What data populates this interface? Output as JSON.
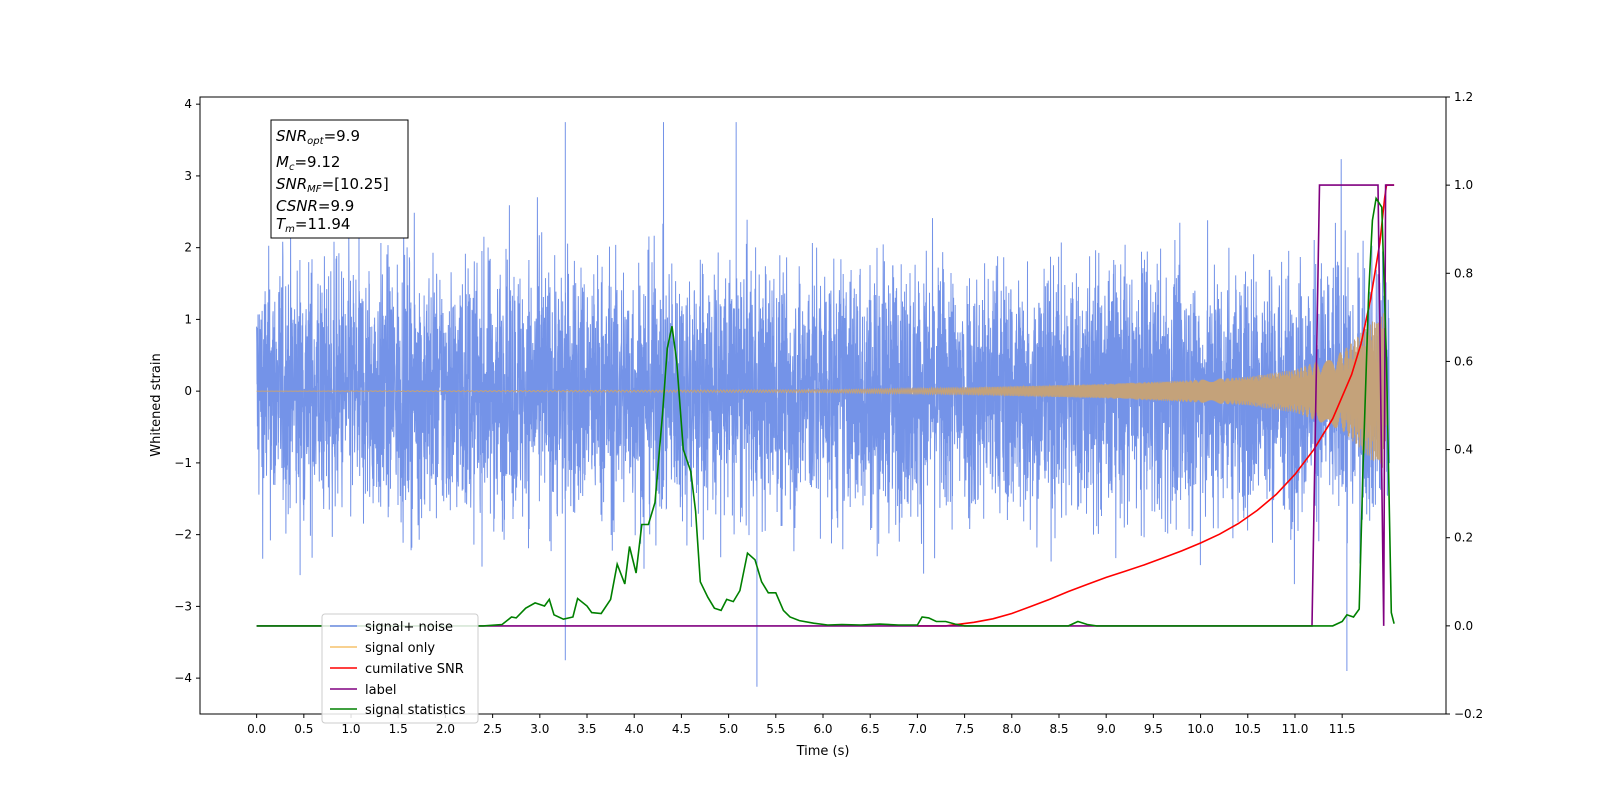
{
  "chart_data": {
    "type": "line",
    "xlabel": "Time (s)",
    "ylabel": "Whitened strain",
    "xlim": [
      -0.6,
      12.6
    ],
    "ylim": [
      -4.5,
      4.1
    ],
    "y2lim": [
      -0.2,
      1.2
    ],
    "x_ticks": [
      "0.0",
      "0.5",
      "1.0",
      "1.5",
      "2.0",
      "2.5",
      "3.0",
      "3.5",
      "4.0",
      "4.5",
      "5.0",
      "5.5",
      "6.0",
      "6.5",
      "7.0",
      "7.5",
      "8.0",
      "8.5",
      "9.0",
      "9.5",
      "10.0",
      "10.5",
      "11.0",
      "11.5"
    ],
    "y_ticks": [
      "4",
      "3",
      "2",
      "1",
      "0",
      "−1",
      "−2",
      "−3",
      "−4"
    ],
    "y2_ticks": [
      "1.2",
      "1.0",
      "0.8",
      "0.6",
      "0.4",
      "0.2",
      "0.0",
      "−0.2"
    ],
    "annotation": {
      "lines": [
        {
          "name": "SNR",
          "sub": "opt",
          "value": "=9.9"
        },
        {
          "name": "M",
          "sub": "c",
          "value": "=9.12"
        },
        {
          "name": "SNR",
          "sub": "MF",
          "value": "=[10.25]"
        },
        {
          "name": "CSNR",
          "sub": "",
          "value": "=9.9"
        },
        {
          "name": "T",
          "sub": "m",
          "value": "=11.94"
        }
      ]
    },
    "legend": {
      "placement": "lower-left",
      "entries": [
        {
          "label": "signal+ noise",
          "color": "#6f8ee6"
        },
        {
          "label": "signal only",
          "color": "#f5c26b"
        },
        {
          "label": "cumilative SNR",
          "color": "#ff0000"
        },
        {
          "label": "label",
          "color": "#800080"
        },
        {
          "label": "signal statistics",
          "color": "#008000"
        }
      ]
    },
    "series": [
      {
        "name": "signal+ noise",
        "axis": "left",
        "color": "#7493e8",
        "kind": "noise",
        "t_range": [
          0.0,
          12.0
        ],
        "amplitude_envelope": 1.7,
        "max": 3.75,
        "min": -4.12
      },
      {
        "name": "signal only",
        "axis": "left",
        "color": "#c4a27a",
        "kind": "chirp",
        "t_range": [
          0.0,
          11.98
        ],
        "envelope": [
          [
            0.0,
            0.0
          ],
          [
            6.0,
            0.02
          ],
          [
            7.5,
            0.05
          ],
          [
            9.0,
            0.1
          ],
          [
            10.0,
            0.16
          ],
          [
            10.5,
            0.2
          ],
          [
            11.0,
            0.3
          ],
          [
            11.5,
            0.55
          ],
          [
            11.8,
            0.95
          ],
          [
            11.95,
            1.1
          ],
          [
            11.98,
            0.0
          ]
        ]
      },
      {
        "name": "cumilative SNR",
        "axis": "right",
        "color": "#ff0000",
        "points": [
          [
            7.0,
            0.0
          ],
          [
            7.3,
            0.0
          ],
          [
            7.6,
            0.008
          ],
          [
            7.8,
            0.016
          ],
          [
            8.0,
            0.028
          ],
          [
            8.2,
            0.044
          ],
          [
            8.4,
            0.06
          ],
          [
            8.6,
            0.078
          ],
          [
            8.8,
            0.094
          ],
          [
            9.0,
            0.11
          ],
          [
            9.2,
            0.124
          ],
          [
            9.4,
            0.138
          ],
          [
            9.6,
            0.154
          ],
          [
            9.8,
            0.17
          ],
          [
            10.0,
            0.188
          ],
          [
            10.2,
            0.208
          ],
          [
            10.4,
            0.232
          ],
          [
            10.6,
            0.262
          ],
          [
            10.8,
            0.298
          ],
          [
            11.0,
            0.344
          ],
          [
            11.2,
            0.4
          ],
          [
            11.4,
            0.47
          ],
          [
            11.6,
            0.57
          ],
          [
            11.7,
            0.64
          ],
          [
            11.8,
            0.74
          ],
          [
            11.9,
            0.87
          ],
          [
            11.95,
            0.97
          ],
          [
            11.97,
            1.0
          ],
          [
            12.05,
            1.0
          ]
        ]
      },
      {
        "name": "label",
        "axis": "right",
        "color": "#800080",
        "points": [
          [
            0.0,
            0.0
          ],
          [
            11.18,
            0.0
          ],
          [
            11.26,
            1.0
          ],
          [
            11.88,
            1.0
          ],
          [
            11.94,
            0.0
          ],
          [
            11.96,
            1.0
          ],
          [
            12.05,
            1.0
          ]
        ]
      },
      {
        "name": "signal statistics",
        "axis": "right",
        "color": "#008000",
        "points": [
          [
            0.0,
            0.0
          ],
          [
            2.4,
            0.0
          ],
          [
            2.6,
            0.003
          ],
          [
            2.7,
            0.02
          ],
          [
            2.75,
            0.018
          ],
          [
            2.85,
            0.04
          ],
          [
            2.95,
            0.052
          ],
          [
            3.05,
            0.045
          ],
          [
            3.1,
            0.06
          ],
          [
            3.15,
            0.025
          ],
          [
            3.25,
            0.015
          ],
          [
            3.35,
            0.02
          ],
          [
            3.4,
            0.062
          ],
          [
            3.5,
            0.045
          ],
          [
            3.55,
            0.03
          ],
          [
            3.65,
            0.028
          ],
          [
            3.75,
            0.06
          ],
          [
            3.82,
            0.14
          ],
          [
            3.9,
            0.095
          ],
          [
            3.95,
            0.18
          ],
          [
            4.02,
            0.12
          ],
          [
            4.08,
            0.23
          ],
          [
            4.15,
            0.23
          ],
          [
            4.22,
            0.28
          ],
          [
            4.3,
            0.48
          ],
          [
            4.35,
            0.63
          ],
          [
            4.4,
            0.68
          ],
          [
            4.45,
            0.6
          ],
          [
            4.52,
            0.4
          ],
          [
            4.6,
            0.35
          ],
          [
            4.65,
            0.26
          ],
          [
            4.7,
            0.1
          ],
          [
            4.78,
            0.065
          ],
          [
            4.85,
            0.04
          ],
          [
            4.92,
            0.035
          ],
          [
            4.98,
            0.06
          ],
          [
            5.05,
            0.055
          ],
          [
            5.12,
            0.08
          ],
          [
            5.2,
            0.165
          ],
          [
            5.28,
            0.15
          ],
          [
            5.35,
            0.1
          ],
          [
            5.42,
            0.075
          ],
          [
            5.5,
            0.075
          ],
          [
            5.58,
            0.035
          ],
          [
            5.65,
            0.02
          ],
          [
            5.75,
            0.012
          ],
          [
            5.9,
            0.006
          ],
          [
            6.05,
            0.002
          ],
          [
            6.2,
            0.003
          ],
          [
            6.4,
            0.002
          ],
          [
            6.6,
            0.004
          ],
          [
            6.8,
            0.002
          ],
          [
            7.0,
            0.002
          ],
          [
            7.05,
            0.02
          ],
          [
            7.12,
            0.018
          ],
          [
            7.2,
            0.01
          ],
          [
            7.3,
            0.01
          ],
          [
            7.4,
            0.004
          ],
          [
            7.5,
            0.0
          ],
          [
            8.6,
            0.0
          ],
          [
            8.7,
            0.01
          ],
          [
            8.8,
            0.003
          ],
          [
            8.9,
            0.0
          ],
          [
            11.4,
            0.0
          ],
          [
            11.5,
            0.01
          ],
          [
            11.55,
            0.025
          ],
          [
            11.62,
            0.02
          ],
          [
            11.68,
            0.038
          ],
          [
            11.72,
            0.35
          ],
          [
            11.78,
            0.75
          ],
          [
            11.82,
            0.92
          ],
          [
            11.86,
            0.97
          ],
          [
            11.92,
            0.95
          ],
          [
            11.97,
            0.6
          ],
          [
            12.02,
            0.03
          ],
          [
            12.05,
            0.005
          ]
        ]
      }
    ]
  }
}
